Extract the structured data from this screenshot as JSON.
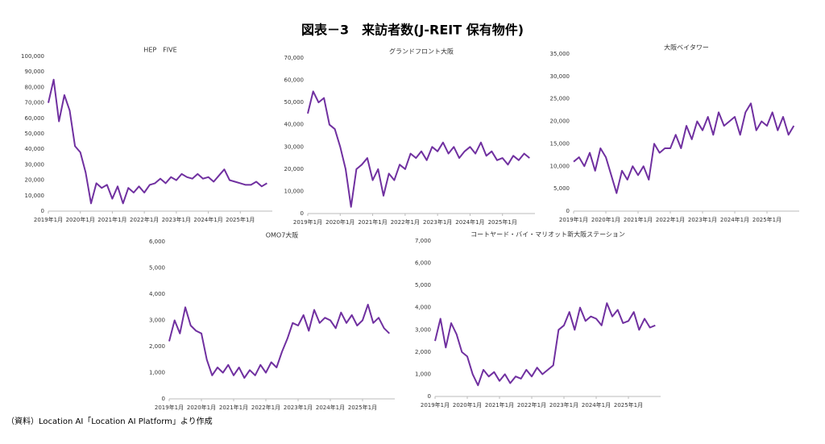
{
  "title": "図表－3　来訪者数(J-REIT 保有物件)",
  "source": "（資料）Location AI「Location AI Platform」より作成",
  "chart_data": [
    {
      "type": "line",
      "title": "HEP　FIVE",
      "color": "#7030a0",
      "x": [
        "2019-01",
        "2019-03",
        "2019-05",
        "2019-07",
        "2019-09",
        "2019-11",
        "2020-01",
        "2020-03",
        "2020-05",
        "2020-07",
        "2020-09",
        "2020-11",
        "2021-01",
        "2021-03",
        "2021-05",
        "2021-07",
        "2021-09",
        "2021-11",
        "2022-01",
        "2022-03",
        "2022-05",
        "2022-07",
        "2022-09",
        "2022-11",
        "2023-01",
        "2023-03",
        "2023-05",
        "2023-07",
        "2023-09",
        "2023-11",
        "2024-01",
        "2024-03",
        "2024-05",
        "2024-07",
        "2024-09",
        "2024-11",
        "2025-01",
        "2025-03",
        "2025-05",
        "2025-07",
        "2025-09",
        "2025-11"
      ],
      "values": [
        70000,
        85000,
        58000,
        75000,
        65000,
        42000,
        38000,
        25000,
        5000,
        18000,
        15000,
        17000,
        8000,
        16000,
        5000,
        15000,
        12000,
        16000,
        12000,
        17000,
        18000,
        21000,
        18000,
        22000,
        20000,
        24000,
        22000,
        21000,
        24000,
        21000,
        22000,
        19000,
        23000,
        27000,
        20000,
        19000,
        18000,
        17000,
        17000,
        19000,
        16000,
        18000
      ],
      "xlim": [
        "2019-01",
        "2026-01"
      ],
      "xticks": [
        {
          "value": "2019-01",
          "label": "2019年1月"
        },
        {
          "value": "2020-01",
          "label": "2020年1月"
        },
        {
          "value": "2021-01",
          "label": "2021年1月"
        },
        {
          "value": "2022-01",
          "label": "2022年1月"
        },
        {
          "value": "2023-01",
          "label": "2023年1月"
        },
        {
          "value": "2024-01",
          "label": "2024年1月"
        },
        {
          "value": "2025-01",
          "label": "2025年1月"
        }
      ],
      "ylim": [
        0,
        100000
      ],
      "yticks": [
        0,
        {
          "value": 10000,
          "label": "10,000"
        },
        {
          "value": 20000,
          "label": "20,000"
        },
        {
          "value": 30000,
          "label": "30,000"
        },
        {
          "value": 40000,
          "label": "40,000"
        },
        {
          "value": 50000,
          "label": "50,000"
        },
        {
          "value": 60000,
          "label": "60,000"
        },
        {
          "value": 70000,
          "label": "70,000"
        },
        {
          "value": 80000,
          "label": "80,000"
        },
        {
          "value": 90000,
          "label": "90,000"
        },
        {
          "value": 100000,
          "label": "100,000"
        }
      ],
      "grid": false
    },
    {
      "type": "line",
      "title": "グランドフロント大阪",
      "color": "#7030a0",
      "x": [
        "2019-01",
        "2019-03",
        "2019-05",
        "2019-07",
        "2019-09",
        "2019-11",
        "2020-01",
        "2020-03",
        "2020-05",
        "2020-07",
        "2020-09",
        "2020-11",
        "2021-01",
        "2021-03",
        "2021-05",
        "2021-07",
        "2021-09",
        "2021-11",
        "2022-01",
        "2022-03",
        "2022-05",
        "2022-07",
        "2022-09",
        "2022-11",
        "2023-01",
        "2023-03",
        "2023-05",
        "2023-07",
        "2023-09",
        "2023-11",
        "2024-01",
        "2024-03",
        "2024-05",
        "2024-07",
        "2024-09",
        "2024-11",
        "2025-01",
        "2025-03",
        "2025-05",
        "2025-07",
        "2025-09",
        "2025-11"
      ],
      "values": [
        45000,
        55000,
        50000,
        52000,
        40000,
        38000,
        30000,
        20000,
        3000,
        20000,
        22000,
        25000,
        15000,
        20000,
        8000,
        18000,
        15000,
        22000,
        20000,
        27000,
        25000,
        28000,
        24000,
        30000,
        28000,
        32000,
        27000,
        30000,
        25000,
        28000,
        30000,
        27000,
        32000,
        26000,
        28000,
        24000,
        25000,
        22000,
        26000,
        24000,
        27000,
        25000
      ],
      "xlim": [
        "2019-01",
        "2026-01"
      ],
      "xticks": [
        {
          "value": "2019-01",
          "label": "2019年1月"
        },
        {
          "value": "2020-01",
          "label": "2020年1月"
        },
        {
          "value": "2021-01",
          "label": "2021年1月"
        },
        {
          "value": "2022-01",
          "label": "2022年1月"
        },
        {
          "value": "2023-01",
          "label": "2023年1月"
        },
        {
          "value": "2024-01",
          "label": "2024年1月"
        },
        {
          "value": "2025-01",
          "label": "2025年1月"
        }
      ],
      "ylim": [
        0,
        70000
      ],
      "yticks": [
        0,
        {
          "value": 10000,
          "label": "10,000"
        },
        {
          "value": 20000,
          "label": "20,000"
        },
        {
          "value": 30000,
          "label": "30,000"
        },
        {
          "value": 40000,
          "label": "40,000"
        },
        {
          "value": 50000,
          "label": "50,000"
        },
        {
          "value": 60000,
          "label": "60,000"
        },
        {
          "value": 70000,
          "label": "70,000"
        }
      ],
      "grid": false
    },
    {
      "type": "line",
      "title": "大阪ベイタワー",
      "color": "#7030a0",
      "x": [
        "2019-01",
        "2019-03",
        "2019-05",
        "2019-07",
        "2019-09",
        "2019-11",
        "2020-01",
        "2020-03",
        "2020-05",
        "2020-07",
        "2020-09",
        "2020-11",
        "2021-01",
        "2021-03",
        "2021-05",
        "2021-07",
        "2021-09",
        "2021-11",
        "2022-01",
        "2022-03",
        "2022-05",
        "2022-07",
        "2022-09",
        "2022-11",
        "2023-01",
        "2023-03",
        "2023-05",
        "2023-07",
        "2023-09",
        "2023-11",
        "2024-01",
        "2024-03",
        "2024-05",
        "2024-07",
        "2024-09",
        "2024-11",
        "2025-01",
        "2025-03",
        "2025-05",
        "2025-07",
        "2025-09",
        "2025-11"
      ],
      "values": [
        11000,
        12000,
        10000,
        13000,
        9000,
        14000,
        12000,
        8000,
        4000,
        9000,
        7000,
        10000,
        8000,
        10000,
        7000,
        15000,
        13000,
        14000,
        14000,
        17000,
        14000,
        19000,
        16000,
        20000,
        18000,
        21000,
        17000,
        22000,
        19000,
        20000,
        21000,
        17000,
        22000,
        24000,
        18000,
        20000,
        19000,
        22000,
        18000,
        21000,
        17000,
        19000
      ],
      "xlim": [
        "2019-01",
        "2026-01"
      ],
      "xticks": [
        {
          "value": "2019-01",
          "label": "2019年1月"
        },
        {
          "value": "2020-01",
          "label": "2020年1月"
        },
        {
          "value": "2021-01",
          "label": "2021年1月"
        },
        {
          "value": "2022-01",
          "label": "2022年1月"
        },
        {
          "value": "2023-01",
          "label": "2023年1月"
        },
        {
          "value": "2024-01",
          "label": "2024年1月"
        },
        {
          "value": "2025-01",
          "label": "2025年1月"
        }
      ],
      "ylim": [
        0,
        35000
      ],
      "yticks": [
        0,
        {
          "value": 5000,
          "label": "5,000"
        },
        {
          "value": 10000,
          "label": "10,000"
        },
        {
          "value": 15000,
          "label": "15,000"
        },
        {
          "value": 20000,
          "label": "20,000"
        },
        {
          "value": 25000,
          "label": "25,000"
        },
        {
          "value": 30000,
          "label": "30,000"
        },
        {
          "value": 35000,
          "label": "35,000"
        }
      ],
      "grid": false
    },
    {
      "type": "line",
      "title": "OMO7大阪",
      "color": "#7030a0",
      "x": [
        "2019-01",
        "2019-03",
        "2019-05",
        "2019-07",
        "2019-09",
        "2019-11",
        "2020-01",
        "2020-03",
        "2020-05",
        "2020-07",
        "2020-09",
        "2020-11",
        "2021-01",
        "2021-03",
        "2021-05",
        "2021-07",
        "2021-09",
        "2021-11",
        "2022-01",
        "2022-03",
        "2022-05",
        "2022-07",
        "2022-09",
        "2022-11",
        "2023-01",
        "2023-03",
        "2023-05",
        "2023-07",
        "2023-09",
        "2023-11",
        "2024-01",
        "2024-03",
        "2024-05",
        "2024-07",
        "2024-09",
        "2024-11",
        "2025-01",
        "2025-03",
        "2025-05",
        "2025-07",
        "2025-09",
        "2025-11"
      ],
      "values": [
        2200,
        3000,
        2500,
        3500,
        2800,
        2600,
        2500,
        1500,
        900,
        1200,
        1000,
        1300,
        900,
        1200,
        800,
        1100,
        900,
        1300,
        1000,
        1400,
        1200,
        1800,
        2300,
        2900,
        2800,
        3200,
        2600,
        3400,
        2900,
        3100,
        3000,
        2700,
        3300,
        2900,
        3200,
        2800,
        3000,
        3600,
        2900,
        3100,
        2700,
        2500
      ],
      "xlim": [
        "2019-01",
        "2026-01"
      ],
      "xticks": [
        {
          "value": "2019-01",
          "label": "2019年1月"
        },
        {
          "value": "2020-01",
          "label": "2020年1月"
        },
        {
          "value": "2021-01",
          "label": "2021年1月"
        },
        {
          "value": "2022-01",
          "label": "2022年1月"
        },
        {
          "value": "2023-01",
          "label": "2023年1月"
        },
        {
          "value": "2024-01",
          "label": "2024年1月"
        },
        {
          "value": "2025-01",
          "label": "2025年1月"
        }
      ],
      "ylim": [
        0,
        6000
      ],
      "yticks": [
        0,
        {
          "value": 1000,
          "label": "1,000"
        },
        {
          "value": 2000,
          "label": "2,000"
        },
        {
          "value": 3000,
          "label": "3,000"
        },
        {
          "value": 4000,
          "label": "4,000"
        },
        {
          "value": 5000,
          "label": "5,000"
        },
        {
          "value": 6000,
          "label": "6,000"
        }
      ],
      "grid": false
    },
    {
      "type": "line",
      "title": "コートヤード・バイ・マリオット新大阪ステーション",
      "color": "#7030a0",
      "x": [
        "2019-01",
        "2019-03",
        "2019-05",
        "2019-07",
        "2019-09",
        "2019-11",
        "2020-01",
        "2020-03",
        "2020-05",
        "2020-07",
        "2020-09",
        "2020-11",
        "2021-01",
        "2021-03",
        "2021-05",
        "2021-07",
        "2021-09",
        "2021-11",
        "2022-01",
        "2022-03",
        "2022-05",
        "2022-07",
        "2022-09",
        "2022-11",
        "2023-01",
        "2023-03",
        "2023-05",
        "2023-07",
        "2023-09",
        "2023-11",
        "2024-01",
        "2024-03",
        "2024-05",
        "2024-07",
        "2024-09",
        "2024-11",
        "2025-01",
        "2025-03",
        "2025-05",
        "2025-07",
        "2025-09",
        "2025-11"
      ],
      "values": [
        2500,
        3500,
        2200,
        3300,
        2800,
        2000,
        1800,
        1000,
        500,
        1200,
        900,
        1100,
        700,
        1000,
        600,
        900,
        800,
        1200,
        900,
        1300,
        1000,
        1200,
        1400,
        3000,
        3200,
        3800,
        3000,
        4000,
        3400,
        3600,
        3500,
        3200,
        4200,
        3600,
        3900,
        3300,
        3400,
        3800,
        3000,
        3500,
        3100,
        3200
      ],
      "xlim": [
        "2019-01",
        "2026-01"
      ],
      "xticks": [
        {
          "value": "2019-01",
          "label": "2019年1月"
        },
        {
          "value": "2020-01",
          "label": "2020年1月"
        },
        {
          "value": "2021-01",
          "label": "2021年1月"
        },
        {
          "value": "2022-01",
          "label": "2022年1月"
        },
        {
          "value": "2023-01",
          "label": "2023年1月"
        },
        {
          "value": "2024-01",
          "label": "2024年1月"
        },
        {
          "value": "2025-01",
          "label": "2025年1月"
        }
      ],
      "ylim": [
        0,
        7000
      ],
      "yticks": [
        0,
        {
          "value": 1000,
          "label": "1,000"
        },
        {
          "value": 2000,
          "label": "2,000"
        },
        {
          "value": 3000,
          "label": "3,000"
        },
        {
          "value": 4000,
          "label": "4,000"
        },
        {
          "value": 5000,
          "label": "5,000"
        },
        {
          "value": 6000,
          "label": "6,000"
        },
        {
          "value": 7000,
          "label": "7,000"
        }
      ],
      "grid": false
    }
  ]
}
